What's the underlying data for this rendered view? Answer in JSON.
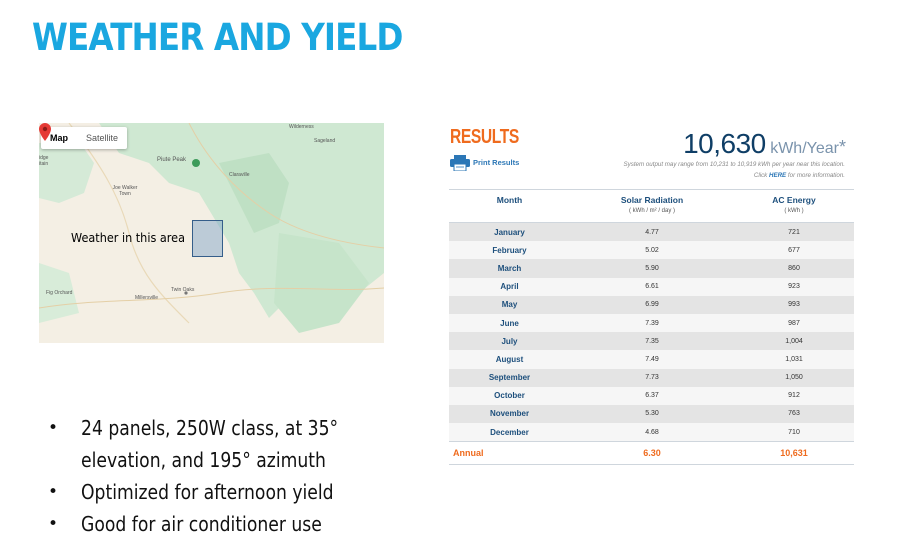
{
  "title": "WEATHER AND YIELD",
  "map": {
    "tabs": [
      {
        "label": "Map",
        "active": true
      },
      {
        "label": "Satellite",
        "active": false
      }
    ],
    "places": [
      "Wilderness",
      "Sageland",
      "Piute Peak",
      "Claraville",
      "Joe Walker Town",
      "Twin Oaks",
      "Millersville",
      "Fig Orchard",
      "idge",
      "itain"
    ],
    "weather_label": "Weather in this area",
    "pin_icon": "map-pin-icon",
    "pin_color": "#e53935"
  },
  "bullets": [
    "24 panels, 250W class, at 35°",
    "elevation, and 195° azimuth",
    "Optimized for afternoon yield",
    "Good for air conditioner use"
  ],
  "results": {
    "title": "RESULTS",
    "print_label": "Print Results",
    "print_icon": "printer-icon",
    "total_value": "10,630",
    "total_unit": "kWh/Year",
    "asterisk": "*",
    "range_note": "System output may range from 10,231 to 10,919 kWh per year near this location.",
    "here_prefix": "Click ",
    "here_link": "HERE",
    "here_suffix": " for more information.",
    "accent_color": "#ef6b1e",
    "headers": {
      "month": "Month",
      "solar": "Solar Radiation",
      "solar_unit": "( kWh / m² / day )",
      "ac": "AC Energy",
      "ac_unit": "( kWh )"
    },
    "rows": [
      {
        "month": "January",
        "solar": "4.77",
        "ac": "721"
      },
      {
        "month": "February",
        "solar": "5.02",
        "ac": "677"
      },
      {
        "month": "March",
        "solar": "5.90",
        "ac": "860"
      },
      {
        "month": "April",
        "solar": "6.61",
        "ac": "923"
      },
      {
        "month": "May",
        "solar": "6.99",
        "ac": "993"
      },
      {
        "month": "June",
        "solar": "7.39",
        "ac": "987"
      },
      {
        "month": "July",
        "solar": "7.35",
        "ac": "1,004"
      },
      {
        "month": "August",
        "solar": "7.49",
        "ac": "1,031"
      },
      {
        "month": "September",
        "solar": "7.73",
        "ac": "1,050"
      },
      {
        "month": "October",
        "solar": "6.37",
        "ac": "912"
      },
      {
        "month": "November",
        "solar": "5.30",
        "ac": "763"
      },
      {
        "month": "December",
        "solar": "4.68",
        "ac": "710"
      }
    ],
    "annual": {
      "label": "Annual",
      "solar": "6.30",
      "ac": "10,631"
    }
  }
}
